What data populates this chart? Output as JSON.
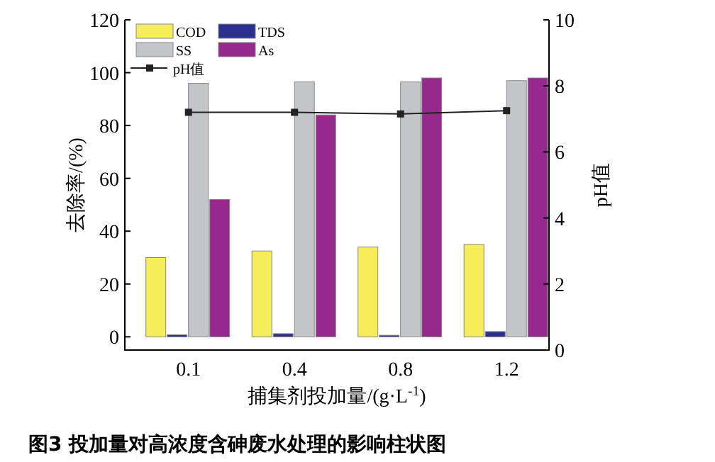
{
  "chart_data": {
    "type": "bar",
    "title": "图3 投加量对高浓度含砷废水处理的影响柱状图",
    "xlabel": "捕集剂投加量/(g·L$^{-1}$)",
    "ylabel": "去除率/(%)",
    "y2label": "pH值",
    "categories": [
      "0.1",
      "0.4",
      "0.8",
      "1.2"
    ],
    "series": [
      {
        "name": "COD",
        "color": "#f5ee5a",
        "values": [
          30,
          32.5,
          34,
          35
        ]
      },
      {
        "name": "TDS",
        "color": "#2b2f8f",
        "values": [
          0.8,
          1.2,
          0.6,
          2
        ]
      },
      {
        "name": "SS",
        "color": "#c3c5c8",
        "values": [
          96,
          96.5,
          96.5,
          97
        ]
      },
      {
        "name": "As",
        "color": "#952a8c",
        "values": [
          52,
          84,
          98,
          98
        ]
      },
      {
        "name": "pH值",
        "type": "line",
        "axis": "y2",
        "color": "#222222",
        "marker": "square",
        "values": [
          7.2,
          7.2,
          7.15,
          7.25
        ]
      }
    ],
    "ylim": [
      -5,
      120
    ],
    "yticks": [
      0,
      20,
      40,
      60,
      80,
      100,
      120
    ],
    "y2lim": [
      0,
      10
    ],
    "y2ticks": [
      0,
      2,
      4,
      6,
      8,
      10
    ],
    "legend": "top left",
    "grid": false
  }
}
